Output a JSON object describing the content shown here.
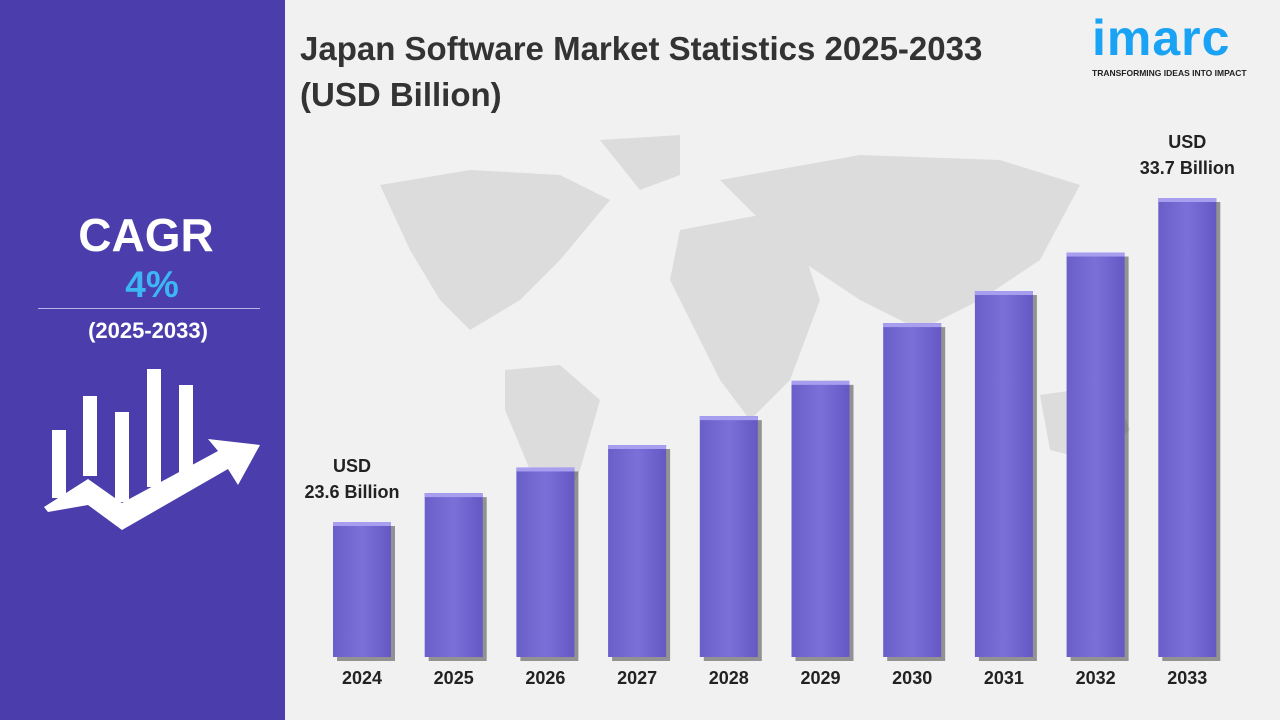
{
  "sidebar": {
    "cagr_label": "CAGR",
    "cagr_value": "4%",
    "period": "(2025-2033)",
    "icon": "bar-chart-growth-arrow-icon"
  },
  "logo": {
    "name": "imarc",
    "tagline": "TRANSFORMING IDEAS INTO IMPACT",
    "color": "#1aa3f5"
  },
  "chart_data": {
    "type": "bar",
    "title": "Japan Software Market Statistics 2025-2033 (USD Billion)",
    "categories": [
      "2024",
      "2025",
      "2026",
      "2027",
      "2028",
      "2029",
      "2030",
      "2031",
      "2032",
      "2033"
    ],
    "values": [
      23.6,
      24.5,
      25.3,
      26.0,
      26.9,
      28.0,
      29.8,
      30.8,
      32.0,
      33.7
    ],
    "annotations": [
      {
        "category": "2024",
        "line1": "USD",
        "line2": "23.6 Billion"
      },
      {
        "category": "2033",
        "line1": "USD",
        "line2": "33.7 Billion"
      }
    ],
    "bar_color": "#7b6fd8",
    "grid": false,
    "legend": "none"
  }
}
